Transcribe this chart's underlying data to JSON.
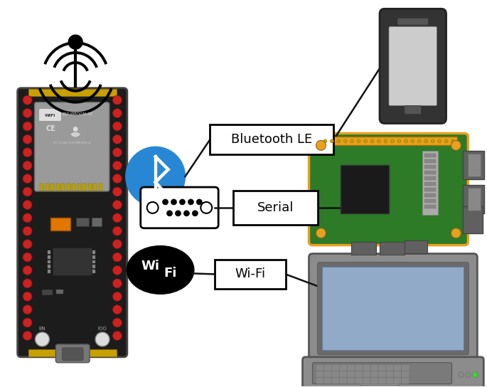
{
  "bg_color": "#ffffff",
  "fig_width": 6.85,
  "fig_height": 5.44,
  "dpi": 100,
  "labels": {
    "bluetooth": "Bluetooth LE",
    "serial": "Serial",
    "wifi": "Wi-Fi"
  },
  "colors": {
    "bluetooth_blue": "#2887D4",
    "wifi_black": "#111111",
    "rpi_green": "#2D7A27",
    "rpi_gold": "#E8A020",
    "rpi_gray": "#808080",
    "rpi_dark_gray": "#606060",
    "laptop_body": "#8C8C8C",
    "laptop_screen_bg": "#90AAC8",
    "phone_body": "#333333",
    "phone_screen": "#CCCCCC",
    "esp32_board": "#1C1C1C",
    "esp32_red": "#CC2222",
    "esp32_module": "#AAAAAA",
    "label_box_bg": "#ffffff",
    "line_color": "#111111"
  }
}
